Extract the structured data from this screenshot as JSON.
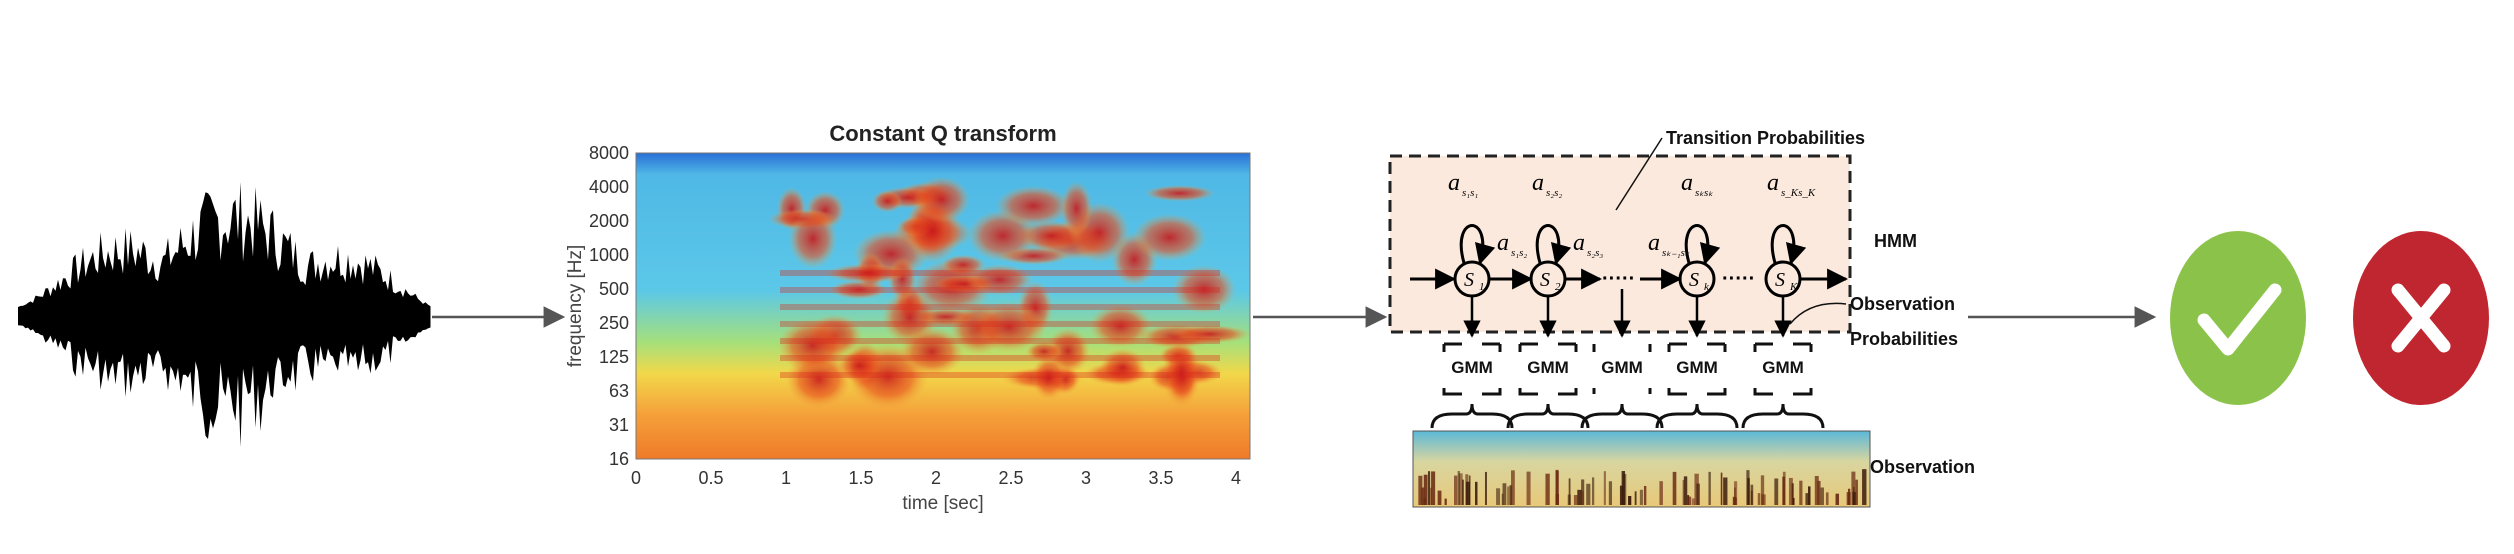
{
  "spectrogram": {
    "title": "Constant Q transform",
    "ylabel": "frequency [Hz]",
    "xlabel": "time [sec]",
    "yticks": [
      "8000",
      "4000",
      "2000",
      "1000",
      "500",
      "250",
      "125",
      "63",
      "31",
      "16"
    ],
    "xticks": [
      "0",
      "0.5",
      "1",
      "1.5",
      "2",
      "2.5",
      "3",
      "3.5",
      "4"
    ]
  },
  "hmm": {
    "transition_label": "Transition Probabilities",
    "hmm_label": "HMM",
    "observation_prob_label_1": "Observation",
    "observation_prob_label_2": "Probabilities",
    "observation_label": "Observation",
    "gmm_label": "GMM",
    "ellipsis": "·····",
    "states": [
      {
        "label": "S",
        "sub": "1"
      },
      {
        "label": "S",
        "sub": "2"
      },
      {
        "label": "S",
        "sub": "k"
      },
      {
        "label": "S",
        "sub": "K"
      }
    ],
    "self_transitions": [
      {
        "base": "a",
        "sub": "s₁s₁"
      },
      {
        "base": "a",
        "sub": "s₂s₂"
      },
      {
        "base": "a",
        "sub": "sₖsₖ"
      },
      {
        "base": "a",
        "sub": "s_Ks_K"
      }
    ],
    "forward_transitions": [
      {
        "base": "a",
        "sub": "s₁s₂"
      },
      {
        "base": "a",
        "sub": "s₂s₃"
      },
      {
        "base": "a",
        "sub": "sₖ₋₁sₖ"
      }
    ]
  },
  "outcomes": {
    "accept_icon": "check-icon",
    "reject_icon": "cross-icon",
    "accept_color": "#8bc34a",
    "reject_color": "#c0262f"
  }
}
